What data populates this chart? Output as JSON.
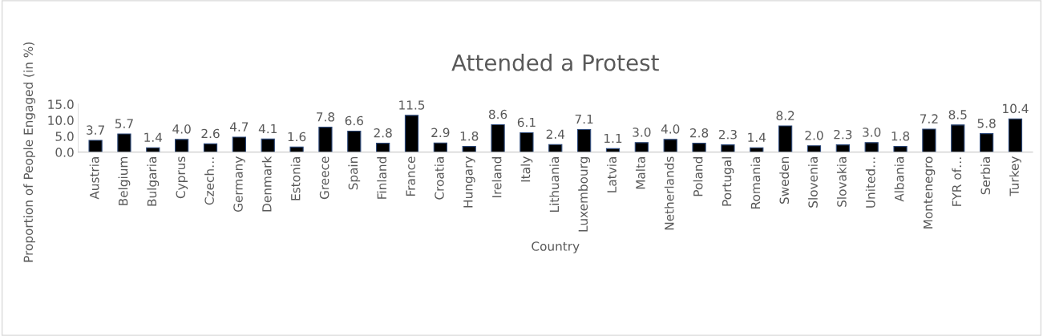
{
  "chart_data": {
    "type": "bar",
    "title": "Attended a Protest",
    "xlabel": "Country",
    "ylabel": "Proportion of People Engaged (in %)",
    "categories": [
      "Austria",
      "Belgium",
      "Bulgaria",
      "Cyprus",
      "Czech…",
      "Germany",
      "Denmark",
      "Estonia",
      "Greece",
      "Spain",
      "Finland",
      "France",
      "Croatia",
      "Hungary",
      "Ireland",
      "Italy",
      "Lithuania",
      "Luxembourg",
      "Latvia",
      "Malta",
      "Netherlands",
      "Poland",
      "Portugal",
      "Romania",
      "Sweden",
      "Slovenia",
      "Slovakia",
      "United…",
      "Albania",
      "Montenegro",
      "FYR of…",
      "Serbia",
      "Turkey"
    ],
    "values": [
      3.7,
      5.7,
      1.4,
      4.0,
      2.6,
      4.7,
      4.1,
      1.6,
      7.8,
      6.6,
      2.8,
      11.5,
      2.9,
      1.8,
      8.6,
      6.1,
      2.4,
      7.1,
      1.1,
      3.0,
      4.0,
      2.8,
      2.3,
      1.4,
      8.2,
      2.0,
      2.3,
      3.0,
      1.8,
      7.2,
      8.5,
      5.8,
      10.4
    ],
    "value_labels": [
      "3.7",
      "5.7",
      "1.4",
      "4.0",
      "2.6",
      "4.7",
      "4.1",
      "1.6",
      "7.8",
      "6.6",
      "2.8",
      "11.5",
      "2.9",
      "1.8",
      "8.6",
      "6.1",
      "2.4",
      "7.1",
      "1.1",
      "3.0",
      "4.0",
      "2.8",
      "2.3",
      "1.4",
      "8.2",
      "2.0",
      "2.3",
      "3.0",
      "1.8",
      "7.2",
      "8.5",
      "5.8",
      "10.4"
    ],
    "color": "#000000",
    "ylim": [
      0,
      15
    ],
    "yticks": [
      {
        "value": 0,
        "label": "0.0"
      },
      {
        "value": 5,
        "label": "5.0"
      },
      {
        "value": 10,
        "label": "10.0"
      },
      {
        "value": 15,
        "label": "15.0"
      }
    ],
    "grid": false,
    "legend": false
  }
}
